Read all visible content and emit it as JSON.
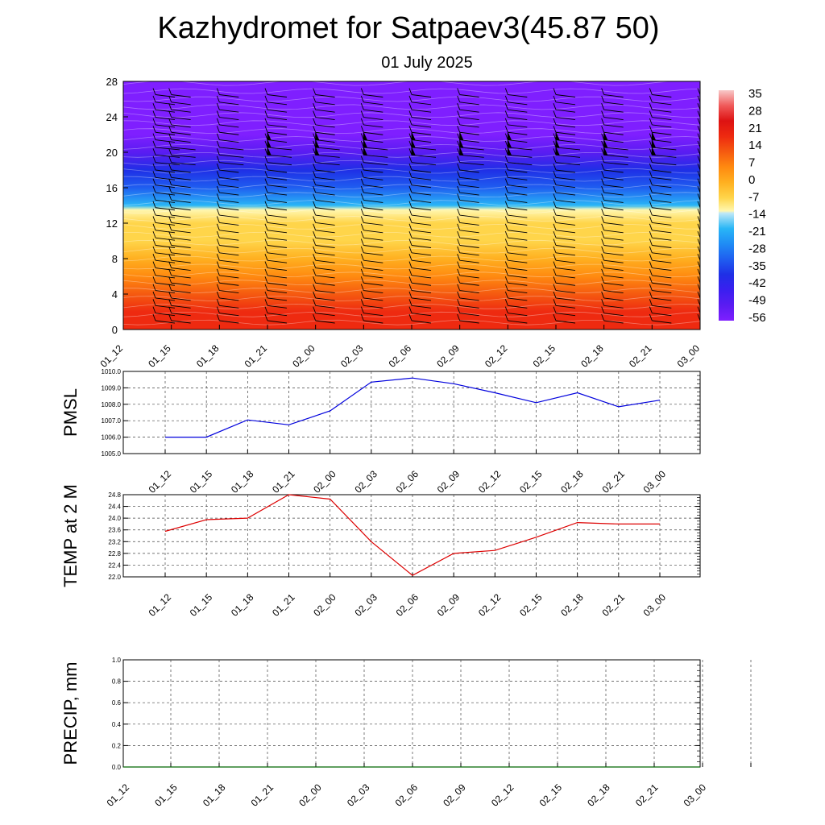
{
  "header": {
    "title": "Kazhydromet for Satpaev3(45.87 50)",
    "subtitle": "01 July 2025"
  },
  "time_labels": [
    "01_12",
    "01_15",
    "01_18",
    "01_21",
    "02_00",
    "02_03",
    "02_06",
    "02_09",
    "02_12",
    "02_15",
    "02_18",
    "02_21",
    "03_00"
  ],
  "chart_data": [
    {
      "type": "heatmap",
      "name": "cross-section",
      "variable": "temperature",
      "x": [
        "01_12",
        "01_15",
        "01_18",
        "01_21",
        "02_00",
        "02_03",
        "02_06",
        "02_09",
        "02_12",
        "02_15",
        "02_18",
        "02_21",
        "03_00"
      ],
      "ylim": [
        0,
        28
      ],
      "yticks": [
        0,
        4,
        8,
        12,
        16,
        20,
        24,
        28
      ],
      "colorbar": {
        "labels": [
          "35",
          "28",
          "21",
          "14",
          "7",
          "0",
          "-7",
          "-14",
          "-21",
          "-28",
          "-35",
          "-42",
          "-49",
          "-56"
        ],
        "range": [
          -63,
          42
        ]
      },
      "profile": [
        {
          "height": 0,
          "temp": 26
        },
        {
          "height": 2,
          "temp": 22
        },
        {
          "height": 4,
          "temp": 17
        },
        {
          "height": 6,
          "temp": 11
        },
        {
          "height": 8,
          "temp": 6
        },
        {
          "height": 10,
          "temp": -1
        },
        {
          "height": 12,
          "temp": -6
        },
        {
          "height": 13.5,
          "temp": -10
        },
        {
          "height": 14,
          "temp": -16
        },
        {
          "height": 16,
          "temp": -28
        },
        {
          "height": 18,
          "temp": -40
        },
        {
          "height": 20,
          "temp": -50
        },
        {
          "height": 22,
          "temp": -57
        },
        {
          "height": 24,
          "temp": -59
        },
        {
          "height": 28,
          "temp": -60
        }
      ],
      "wind_barbs": "present",
      "grid": false
    },
    {
      "type": "line",
      "name": "pmsl",
      "ylabel": "PMSL",
      "categories": [
        "01_12",
        "01_15",
        "01_18",
        "01_21",
        "02_00",
        "02_03",
        "02_06",
        "02_09",
        "02_12",
        "02_15",
        "02_18",
        "02_21",
        "03_00"
      ],
      "values": [
        1006.0,
        1006.0,
        1007.05,
        1006.75,
        1007.6,
        1009.35,
        1009.6,
        1009.25,
        1008.7,
        1008.1,
        1008.7,
        1007.85,
        1008.25
      ],
      "ylim": [
        1005.0,
        1010.0
      ],
      "yticks": [
        "1005.0",
        "1006.0",
        "1007.0",
        "1008.0",
        "1009.0",
        "1010.0"
      ],
      "color": "#0000dd",
      "grid": true
    },
    {
      "type": "line",
      "name": "temp2m",
      "ylabel": "TEMP at 2 M",
      "categories": [
        "01_12",
        "01_15",
        "01_18",
        "01_21",
        "02_00",
        "02_03",
        "02_06",
        "02_09",
        "02_12",
        "02_15",
        "02_18",
        "02_21",
        "03_00"
      ],
      "values": [
        23.55,
        23.95,
        24.0,
        24.8,
        24.65,
        23.2,
        22.05,
        22.8,
        22.9,
        23.35,
        23.85,
        23.8,
        23.8
      ],
      "ylim": [
        22.0,
        24.8
      ],
      "yticks": [
        "22.0",
        "22.4",
        "22.8",
        "23.2",
        "23.6",
        "24.0",
        "24.4",
        "24.8"
      ],
      "color": "#dd0000",
      "grid": true
    },
    {
      "type": "line",
      "name": "precip",
      "ylabel": "PRECIP, mm",
      "categories": [
        "01_12",
        "01_15",
        "01_18",
        "01_21",
        "02_00",
        "02_03",
        "02_06",
        "02_09",
        "02_12",
        "02_15",
        "02_18",
        "02_21",
        "03_00"
      ],
      "values": [
        0,
        0,
        0,
        0,
        0,
        0,
        0,
        0,
        0,
        0,
        0,
        0,
        0
      ],
      "ylim": [
        0.0,
        1.0
      ],
      "yticks": [
        "0.0",
        "0.2",
        "0.4",
        "0.6",
        "0.8",
        "1.0"
      ],
      "color": "#006600",
      "grid": true
    }
  ]
}
